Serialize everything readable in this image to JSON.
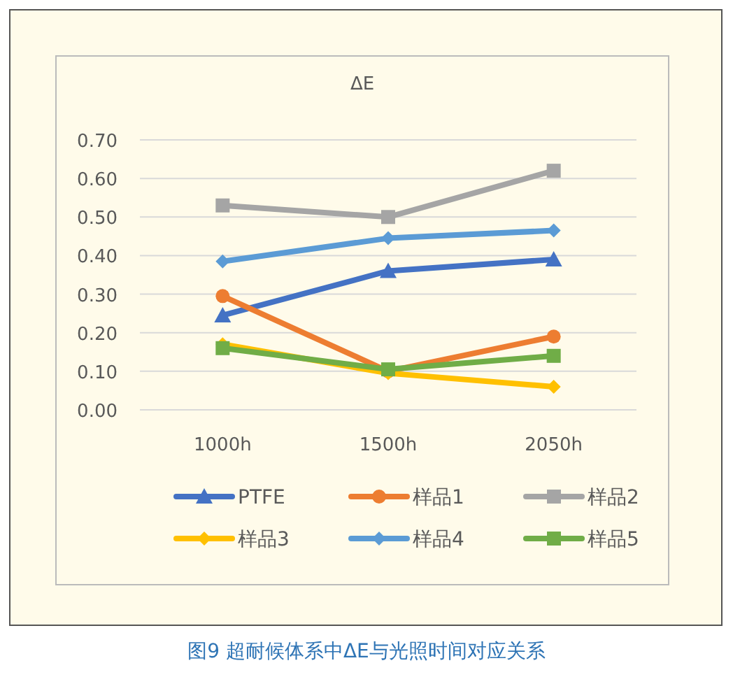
{
  "chart_data": {
    "type": "line",
    "title": "ΔE",
    "categories": [
      "1000h",
      "1500h",
      "2050h"
    ],
    "ylim": [
      0,
      0.7
    ],
    "yticks": [
      {
        "value": 0,
        "label": "0.00"
      },
      {
        "value": 0.1,
        "label": "0.10"
      },
      {
        "value": 0.2,
        "label": "0.20"
      },
      {
        "value": 0.3,
        "label": "0.30"
      },
      {
        "value": 0.4,
        "label": "0.40"
      },
      {
        "value": 0.5,
        "label": "0.50"
      },
      {
        "value": 0.6,
        "label": "0.60"
      },
      {
        "value": 0.7,
        "label": "0.70"
      }
    ],
    "grid": "y",
    "legend": "bottom",
    "line_style": "solid",
    "series": [
      {
        "name": "PTFE",
        "color": "#4472c4",
        "marker": "triangle",
        "values": [
          0.245,
          0.36,
          0.39
        ]
      },
      {
        "name": "样品1",
        "color": "#ed7d31",
        "marker": "circle",
        "values": [
          0.295,
          0.1,
          0.19
        ]
      },
      {
        "name": "样品2",
        "color": "#a5a5a5",
        "marker": "square",
        "values": [
          0.53,
          0.5,
          0.62
        ]
      },
      {
        "name": "样品3",
        "color": "#ffc000",
        "marker": "diamond",
        "values": [
          0.17,
          0.095,
          0.06
        ]
      },
      {
        "name": "样品4",
        "color": "#5b9bd5",
        "marker": "diamond",
        "values": [
          0.385,
          0.445,
          0.465
        ]
      },
      {
        "name": "样品5",
        "color": "#70ad47",
        "marker": "square",
        "values": [
          0.16,
          0.105,
          0.14
        ]
      }
    ],
    "annotations": [
      "图9 超耐候体系中ΔE与光照时间对应关系"
    ]
  }
}
